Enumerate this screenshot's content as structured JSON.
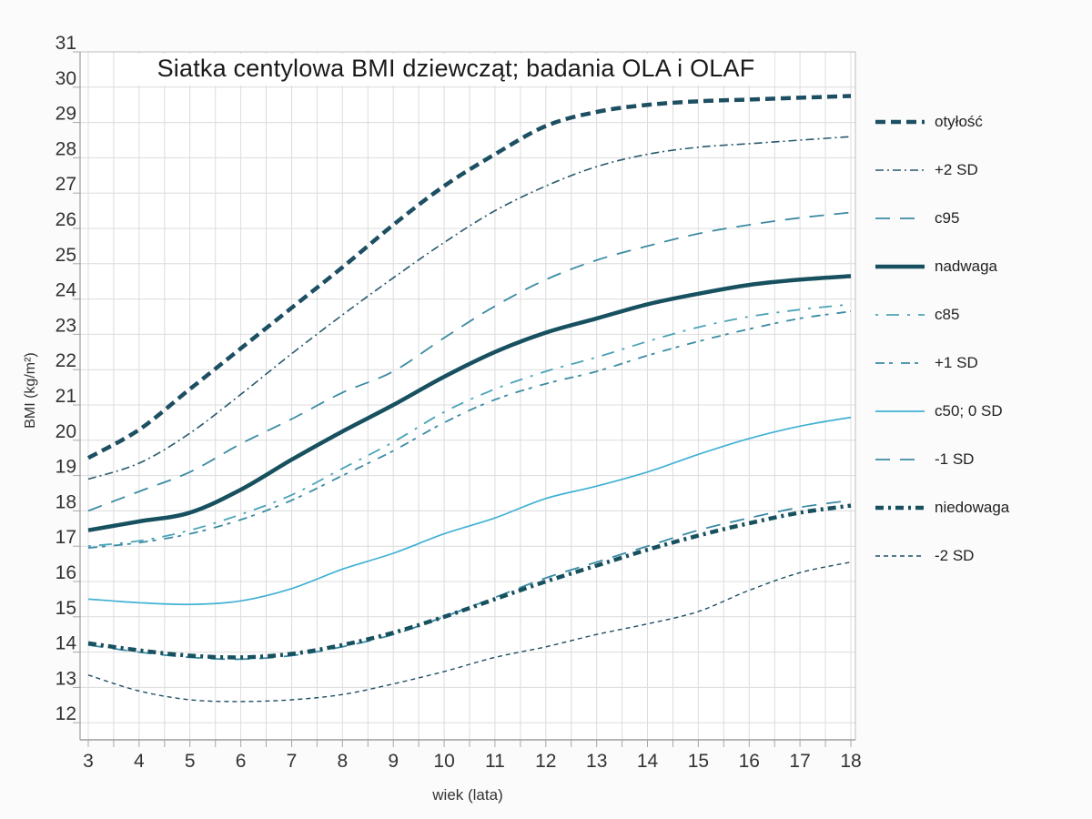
{
  "page": {
    "background": "#fbfbfb"
  },
  "chart_data": {
    "type": "line",
    "title": "Siatka centylowa BMI dziewcząt; badania OLA i OLAF",
    "xlabel": "wiek (lata)",
    "ylabel": "BMI (kg/m²)",
    "x": [
      3,
      4,
      5,
      6,
      7,
      8,
      9,
      10,
      11,
      12,
      13,
      14,
      15,
      16,
      17,
      18
    ],
    "x_ticks": [
      3,
      4,
      5,
      6,
      7,
      8,
      9,
      10,
      11,
      12,
      13,
      14,
      15,
      16,
      17,
      18
    ],
    "y_ticks": [
      31,
      30,
      29,
      28,
      27,
      26,
      25,
      24,
      23,
      22,
      21,
      20,
      19,
      18,
      17,
      16,
      15,
      14,
      13,
      12
    ],
    "xlim": [
      3,
      18
    ],
    "ylim": [
      12,
      31
    ],
    "grid": {
      "x_minor_step": 0.5,
      "y_step": 1,
      "grid_color": "#dcdcdc",
      "axis_color": "#a8a8a8",
      "plot_background": "#ffffff"
    },
    "legend_position": "right",
    "series": [
      {
        "name": "otyłość",
        "color": "#1d4f63",
        "width": 4.5,
        "dash": "11 6",
        "values": [
          19.5,
          20.3,
          21.45,
          22.6,
          23.75,
          24.9,
          26.1,
          27.2,
          28.1,
          28.9,
          29.3,
          29.5,
          29.6,
          29.65,
          29.7,
          29.75
        ]
      },
      {
        "name": "+2 SD",
        "color": "#27596b",
        "width": 1.6,
        "dash": "9 4 2 4",
        "values": [
          18.9,
          19.35,
          20.2,
          21.3,
          22.45,
          23.55,
          24.6,
          25.6,
          26.5,
          27.2,
          27.75,
          28.1,
          28.3,
          28.4,
          28.5,
          28.6
        ]
      },
      {
        "name": "c95",
        "color": "#3b8ba3",
        "width": 1.8,
        "dash": "16 11",
        "values": [
          18.0,
          18.55,
          19.1,
          19.9,
          20.6,
          21.35,
          21.95,
          22.9,
          23.8,
          24.55,
          25.1,
          25.5,
          25.85,
          26.1,
          26.3,
          26.45
        ]
      },
      {
        "name": "nadwaga",
        "color": "#17505f",
        "width": 4.5,
        "dash": "",
        "values": [
          17.45,
          17.7,
          17.95,
          18.6,
          19.45,
          20.25,
          21.0,
          21.8,
          22.5,
          23.05,
          23.45,
          23.85,
          24.15,
          24.4,
          24.55,
          24.65
        ]
      },
      {
        "name": "c85",
        "color": "#4aa3b8",
        "width": 1.8,
        "dash": "3 9 14 9",
        "values": [
          17.0,
          17.15,
          17.45,
          17.9,
          18.45,
          19.2,
          19.95,
          20.8,
          21.45,
          21.95,
          22.35,
          22.8,
          23.2,
          23.5,
          23.7,
          23.85
        ]
      },
      {
        "name": "+1 SD",
        "color": "#3b8ba3",
        "width": 1.8,
        "dash": "10 5 4 9",
        "values": [
          16.95,
          17.1,
          17.35,
          17.75,
          18.3,
          19.0,
          19.7,
          20.5,
          21.15,
          21.6,
          21.95,
          22.4,
          22.8,
          23.15,
          23.45,
          23.65
        ]
      },
      {
        "name": "c50; 0 SD",
        "color": "#41b1d4",
        "width": 1.7,
        "dash": "",
        "values": [
          15.5,
          15.4,
          15.35,
          15.45,
          15.8,
          16.35,
          16.8,
          17.35,
          17.8,
          18.35,
          18.7,
          19.1,
          19.6,
          20.05,
          20.4,
          20.65
        ]
      },
      {
        "name": "-1 SD",
        "color": "#3b8ba3",
        "width": 1.8,
        "dash": "16 11",
        "values": [
          14.2,
          14.0,
          13.85,
          13.8,
          13.9,
          14.15,
          14.5,
          15.0,
          15.55,
          16.1,
          16.55,
          17.0,
          17.45,
          17.8,
          18.1,
          18.3
        ]
      },
      {
        "name": "niedowaga",
        "color": "#17505f",
        "width": 4.5,
        "dash": "9 5 3 5",
        "values": [
          14.25,
          14.05,
          13.9,
          13.85,
          13.95,
          14.2,
          14.55,
          15.0,
          15.5,
          16.0,
          16.45,
          16.9,
          17.3,
          17.65,
          17.95,
          18.15
        ]
      },
      {
        "name": "-2 SD",
        "color": "#1d4f63",
        "width": 1.4,
        "dash": "5 4",
        "values": [
          13.35,
          12.9,
          12.65,
          12.6,
          12.65,
          12.8,
          13.1,
          13.45,
          13.85,
          14.15,
          14.5,
          14.8,
          15.15,
          15.75,
          16.25,
          16.55
        ]
      }
    ]
  }
}
